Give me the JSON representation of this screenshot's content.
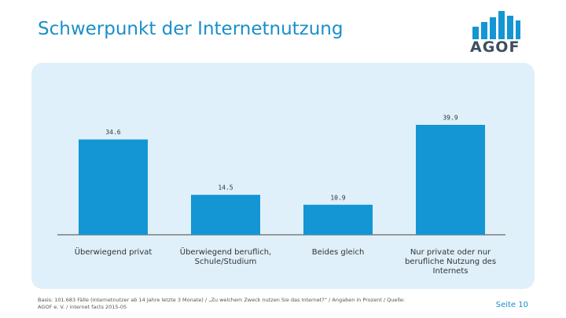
{
  "header": {
    "title": "Schwerpunkt der Internetnutzung",
    "logo": "AGOF"
  },
  "chart_data": {
    "type": "bar",
    "categories": [
      "Überwiegend privat",
      "Überwiegend beruflich, Schule/Studium",
      "Beides gleich",
      "Nur private oder nur berufliche Nutzung des Internets"
    ],
    "values": [
      34.6,
      14.5,
      10.9,
      39.9
    ],
    "color": "#1396d3"
  },
  "footer": {
    "note": "Basis: 101.683 Fälle (Internetnutzer ab 14 Jahre letzte 3 Monate) / „Zu welchem Zweck nutzen Sie das Internet?“ / Angaben in Prozent / Quelle: AGOF e. V. / internet facts 2015-05",
    "page": "Seite 10"
  }
}
